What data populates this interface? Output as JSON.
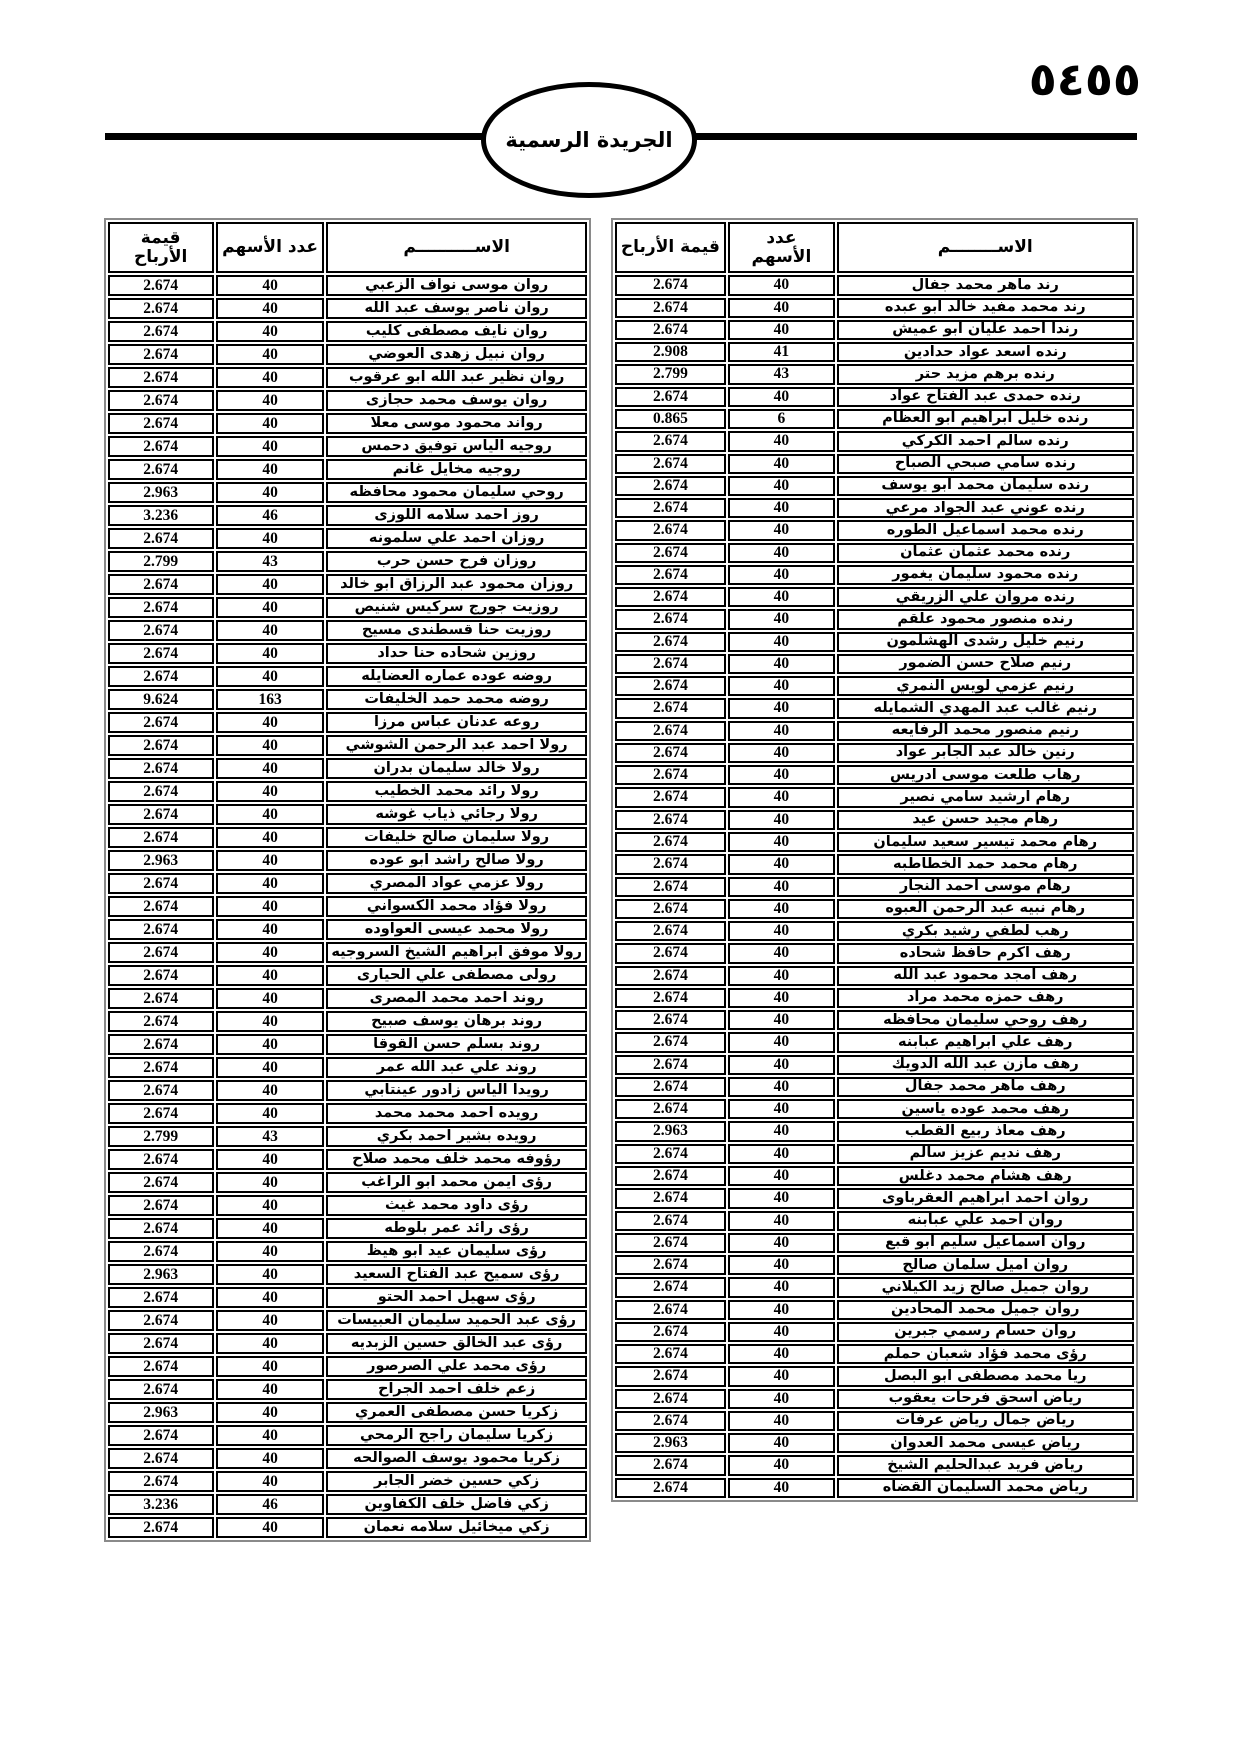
{
  "page_number": "٥٤٥٥",
  "banner": {
    "title": "الجريدة الرسمية"
  },
  "table_right": {
    "headers": {
      "name": "الاســــــــم",
      "shares": "عدد\nالأسهم",
      "profit": "قيمة الأرباح"
    },
    "rows": [
      [
        "رند ماهر محمد جفال",
        "40",
        "2.674"
      ],
      [
        "رند محمد مفيد خالد ابو عبده",
        "40",
        "2.674"
      ],
      [
        "رندا احمد عليان ابو عميش",
        "40",
        "2.674"
      ],
      [
        "رنده اسعد عواد حدادين",
        "41",
        "2.908"
      ],
      [
        "رنده برهم مزيد حتر",
        "43",
        "2.799"
      ],
      [
        "رنده حمدى عبد الفتاح عواد",
        "40",
        "2.674"
      ],
      [
        "رنده خليل ابراهيم ابو العظام",
        "6",
        "0.865"
      ],
      [
        "رنده سالم احمد الكركي",
        "40",
        "2.674"
      ],
      [
        "رنده سامي صبحي الصباح",
        "40",
        "2.674"
      ],
      [
        "رنده سليمان محمد ابو يوسف",
        "40",
        "2.674"
      ],
      [
        "رنده عوني عبد الجواد مرعي",
        "40",
        "2.674"
      ],
      [
        "رنده محمد اسماعيل الطوره",
        "40",
        "2.674"
      ],
      [
        "رنده محمد عثمان عثمان",
        "40",
        "2.674"
      ],
      [
        "رنده محمود سليمان يغمور",
        "40",
        "2.674"
      ],
      [
        "رنده مروان علي الزريقي",
        "40",
        "2.674"
      ],
      [
        "رنده منصور محمود علقم",
        "40",
        "2.674"
      ],
      [
        "رنيم خليل رشدى الهشلمون",
        "40",
        "2.674"
      ],
      [
        "رنيم صلاح حسن الضمور",
        "40",
        "2.674"
      ],
      [
        "رنيم عزمي لويس النمري",
        "40",
        "2.674"
      ],
      [
        "رنيم غالب عبد المهدي الشمايله",
        "40",
        "2.674"
      ],
      [
        "رنيم منصور محمد الرفايعه",
        "40",
        "2.674"
      ],
      [
        "رنين خالد عبد الجابر عواد",
        "40",
        "2.674"
      ],
      [
        "رهاب طلعت موسى ادريس",
        "40",
        "2.674"
      ],
      [
        "رهام ارشيد سامي نصير",
        "40",
        "2.674"
      ],
      [
        "رهام مجيد حسن عيد",
        "40",
        "2.674"
      ],
      [
        "رهام محمد تيسير سعيد سليمان",
        "40",
        "2.674"
      ],
      [
        "رهام محمد حمد الخطاطبه",
        "40",
        "2.674"
      ],
      [
        "رهام موسى احمد النجار",
        "40",
        "2.674"
      ],
      [
        "رهام نبيه عبد الرحمن العبوه",
        "40",
        "2.674"
      ],
      [
        "رهب لطفي رشيد بكري",
        "40",
        "2.674"
      ],
      [
        "رهف اكرم حافظ شحاده",
        "40",
        "2.674"
      ],
      [
        "رهف امجد محمود عبد الله",
        "40",
        "2.674"
      ],
      [
        "رهف حمزه محمد مراد",
        "40",
        "2.674"
      ],
      [
        "رهف روحي سليمان محافظه",
        "40",
        "2.674"
      ],
      [
        "رهف علي ابراهيم عبابنه",
        "40",
        "2.674"
      ],
      [
        "رهف مازن عبد الله الدويك",
        "40",
        "2.674"
      ],
      [
        "رهف ماهر محمد جفال",
        "40",
        "2.674"
      ],
      [
        "رهف محمد عوده ياسين",
        "40",
        "2.674"
      ],
      [
        "رهف معاذ ربيع القطب",
        "40",
        "2.963"
      ],
      [
        "رهف نديم عزيز سالم",
        "40",
        "2.674"
      ],
      [
        "رهف هشام محمد دغلس",
        "40",
        "2.674"
      ],
      [
        "روان احمد ابراهيم العقرباوى",
        "40",
        "2.674"
      ],
      [
        "روان احمد علي عبابنه",
        "40",
        "2.674"
      ],
      [
        "روان اسماعيل سليم ابو قبع",
        "40",
        "2.674"
      ],
      [
        "روان اميل سلمان صالح",
        "40",
        "2.674"
      ],
      [
        "روان جميل صالح زيد الكيلاني",
        "40",
        "2.674"
      ],
      [
        "روان جميل محمد المحادين",
        "40",
        "2.674"
      ],
      [
        "روان حسام رسمي جبرين",
        "40",
        "2.674"
      ],
      [
        "رؤى محمد فؤاد شعبان حملم",
        "40",
        "2.674"
      ],
      [
        "ريا محمد مصطفى ابو البصل",
        "40",
        "2.674"
      ],
      [
        "رياض اسحق فرحات يعقوب",
        "40",
        "2.674"
      ],
      [
        "رياض جمال رياض عرفات",
        "40",
        "2.674"
      ],
      [
        "رياض عيسى محمد العدوان",
        "40",
        "2.963"
      ],
      [
        "رياض فريد عبدالحليم الشيخ",
        "40",
        "2.674"
      ],
      [
        "رياض محمد السليمان القضاه",
        "40",
        "2.674"
      ]
    ]
  },
  "table_left": {
    "headers": {
      "name": "الاســــــــــم",
      "shares": "عدد الأسهم",
      "profit": "قيمة الأرباح"
    },
    "rows": [
      [
        "روان موسى نواف الزعبي",
        "40",
        "2.674"
      ],
      [
        "روان ناصر يوسف عبد الله",
        "40",
        "2.674"
      ],
      [
        "روان نايف مصطفى كليب",
        "40",
        "2.674"
      ],
      [
        "روان نبيل زهدى العوضي",
        "40",
        "2.674"
      ],
      [
        "روان نظير عبد الله ابو عرقوب",
        "40",
        "2.674"
      ],
      [
        "روان يوسف محمد حجازى",
        "40",
        "2.674"
      ],
      [
        "رواند محمود موسى معلا",
        "40",
        "2.674"
      ],
      [
        "روجيه الياس توفيق دحمس",
        "40",
        "2.674"
      ],
      [
        "روجيه مخايل غانم",
        "40",
        "2.674"
      ],
      [
        "روحي سليمان محمود محافظه",
        "40",
        "2.963"
      ],
      [
        "روز احمد سلامه اللوزى",
        "46",
        "3.236"
      ],
      [
        "روزان احمد علي سلمونه",
        "40",
        "2.674"
      ],
      [
        "روزان فرح حسن حرب",
        "43",
        "2.799"
      ],
      [
        "روزان محمود عبد الرزاق ابو خالد",
        "40",
        "2.674"
      ],
      [
        "روزيت جورج سركيس شنيص",
        "40",
        "2.674"
      ],
      [
        "روزيت حنا قسطندى مسيح",
        "40",
        "2.674"
      ],
      [
        "روزين شحاده حنا حداد",
        "40",
        "2.674"
      ],
      [
        "روضه عوده عماره العضايله",
        "40",
        "2.674"
      ],
      [
        "روضه محمد حمد الخليفات",
        "163",
        "9.624"
      ],
      [
        "روعه عدنان عباس مرزا",
        "40",
        "2.674"
      ],
      [
        "رولا احمد عبد الرحمن الشوشي",
        "40",
        "2.674"
      ],
      [
        "رولا خالد سليمان بدران",
        "40",
        "2.674"
      ],
      [
        "رولا رائد محمد الخطيب",
        "40",
        "2.674"
      ],
      [
        "رولا رجائي ذياب غوشه",
        "40",
        "2.674"
      ],
      [
        "رولا سليمان صالح خليفات",
        "40",
        "2.674"
      ],
      [
        "رولا صالح راشد ابو عوده",
        "40",
        "2.963"
      ],
      [
        "رولا عزمي عواد المصري",
        "40",
        "2.674"
      ],
      [
        "رولا فؤاد محمد الكسواني",
        "40",
        "2.674"
      ],
      [
        "رولا محمد عيسى العواوده",
        "40",
        "2.674"
      ],
      [
        "رولا موفق ابراهيم الشيخ السروجيه",
        "40",
        "2.674"
      ],
      [
        "رولى مصطفى علي الحيارى",
        "40",
        "2.674"
      ],
      [
        "روند احمد محمد المصرى",
        "40",
        "2.674"
      ],
      [
        "روند برهان يوسف صبيح",
        "40",
        "2.674"
      ],
      [
        "روند بسلم حسن القوقا",
        "40",
        "2.674"
      ],
      [
        "روند علي عبد الله عمر",
        "40",
        "2.674"
      ],
      [
        "رويدا الياس زادور عينتابي",
        "40",
        "2.674"
      ],
      [
        "رويده احمد محمد محمد",
        "40",
        "2.674"
      ],
      [
        "رويده بشير احمد بكري",
        "43",
        "2.799"
      ],
      [
        "رؤوفه محمد خلف محمد صلاح",
        "40",
        "2.674"
      ],
      [
        "رؤى ايمن محمد ابو الراغب",
        "40",
        "2.674"
      ],
      [
        "رؤى داود محمد غيث",
        "40",
        "2.674"
      ],
      [
        "رؤى رائد عمر بلوطه",
        "40",
        "2.674"
      ],
      [
        "رؤى سليمان عيد ابو هيظ",
        "40",
        "2.674"
      ],
      [
        "رؤى سميح عبد الفتاح السعيد",
        "40",
        "2.963"
      ],
      [
        "رؤى سهيل احمد الحتو",
        "40",
        "2.674"
      ],
      [
        "رؤى عبد الحميد سليمان العبيسات",
        "40",
        "2.674"
      ],
      [
        "رؤى عبد الخالق حسين الزبديه",
        "40",
        "2.674"
      ],
      [
        "رؤى محمد علي الصرصور",
        "40",
        "2.674"
      ],
      [
        "زعم خلف احمد الجراح",
        "40",
        "2.674"
      ],
      [
        "زكريا حسن مصطفى العمري",
        "40",
        "2.963"
      ],
      [
        "زكريا سليمان راجح الرمحي",
        "40",
        "2.674"
      ],
      [
        "زكريا محمود يوسف الصوالحه",
        "40",
        "2.674"
      ],
      [
        "زكي حسين خضر الجابر",
        "40",
        "2.674"
      ],
      [
        "زكي فاضل خلف الكفاوين",
        "46",
        "3.236"
      ],
      [
        "زكي ميخائيل سلامه نعمان",
        "40",
        "2.674"
      ]
    ]
  }
}
